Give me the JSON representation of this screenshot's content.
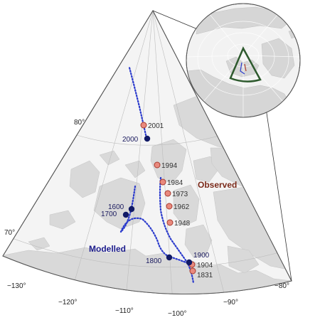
{
  "colors": {
    "land": "#d9d9d9",
    "water": "#f4f4f4",
    "grid": "#bdbdbd",
    "observed_fill": "#e98a7e",
    "observed_stroke": "#a83a2e",
    "modelled": "#111a66",
    "modelled_trail": "#2a3acc",
    "inset_frame": "#2e5a2e"
  },
  "grid_labels": {
    "lat_80": "80°",
    "lat_70": "70°",
    "lon_m130": "−130°",
    "lon_m120": "−120°",
    "lon_m110": "−110°",
    "lon_m100": "−100°",
    "lon_m90": "−90°",
    "lon_m80": "−80°"
  },
  "series_labels": {
    "observed": "Observed",
    "modelled": "Modelled"
  },
  "observed_years": [
    "2001",
    "1994",
    "1984",
    "1973",
    "1962",
    "1948",
    "1904",
    "1831"
  ],
  "modelled_years": [
    "2000",
    "1600",
    "1700",
    "1800",
    "1900"
  ]
}
